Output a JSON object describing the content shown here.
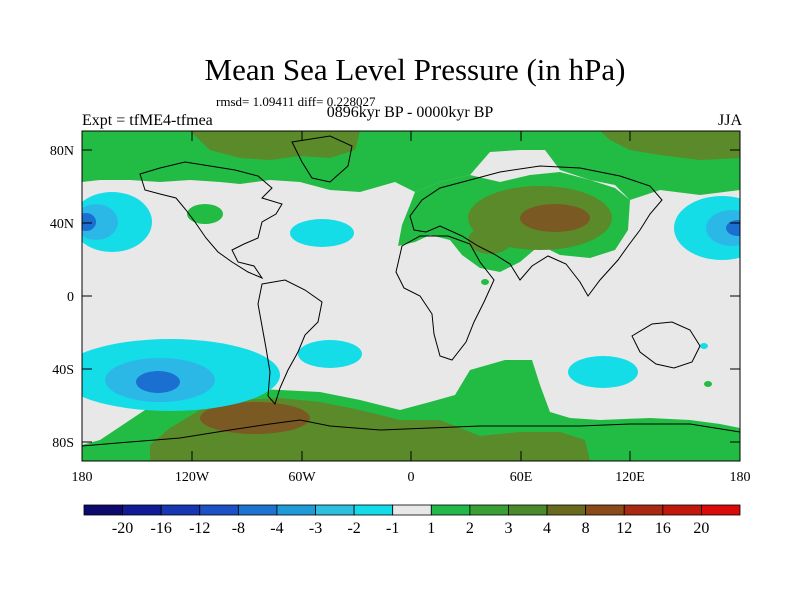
{
  "header": {
    "title": "Mean Sea Level Pressure (in hPa)",
    "stats": "rmsd= 1.09411 diff= 0.228027",
    "experiment": "Expt = tfME4-tfmea",
    "period": "0896kyr BP - 0000kyr BP",
    "season": "JJA"
  },
  "axes": {
    "lat_ticks": [
      "80N",
      "40N",
      "0",
      "40S",
      "80S"
    ],
    "lon_ticks": [
      "180",
      "120W",
      "60W",
      "0",
      "60E",
      "120E",
      "180"
    ]
  },
  "colorbar": {
    "labels": [
      "-20",
      "-16",
      "-12",
      "-8",
      "-4",
      "-3",
      "-2",
      "-1",
      "1",
      "2",
      "3",
      "4",
      "8",
      "12",
      "16",
      "20"
    ],
    "colors": [
      "#0d0a6e",
      "#131a96",
      "#1736b4",
      "#1c52c6",
      "#1e73d2",
      "#1f9bd8",
      "#2cc0e0",
      "#14dbe8",
      "#e8e8e8",
      "#22b84a",
      "#3aa035",
      "#4a8a2a",
      "#6a6a1e",
      "#8a4a1a",
      "#a82a14",
      "#c0180c",
      "#d80a0a"
    ]
  },
  "palette": {
    "green": "#22bb44",
    "olive": "#5a8a2a",
    "brown": "#7a5a22",
    "cyan": "#14dde8",
    "light_blue": "#2cb8e6",
    "blue": "#1a6fd0",
    "neutral": "#e8e8e8"
  }
}
